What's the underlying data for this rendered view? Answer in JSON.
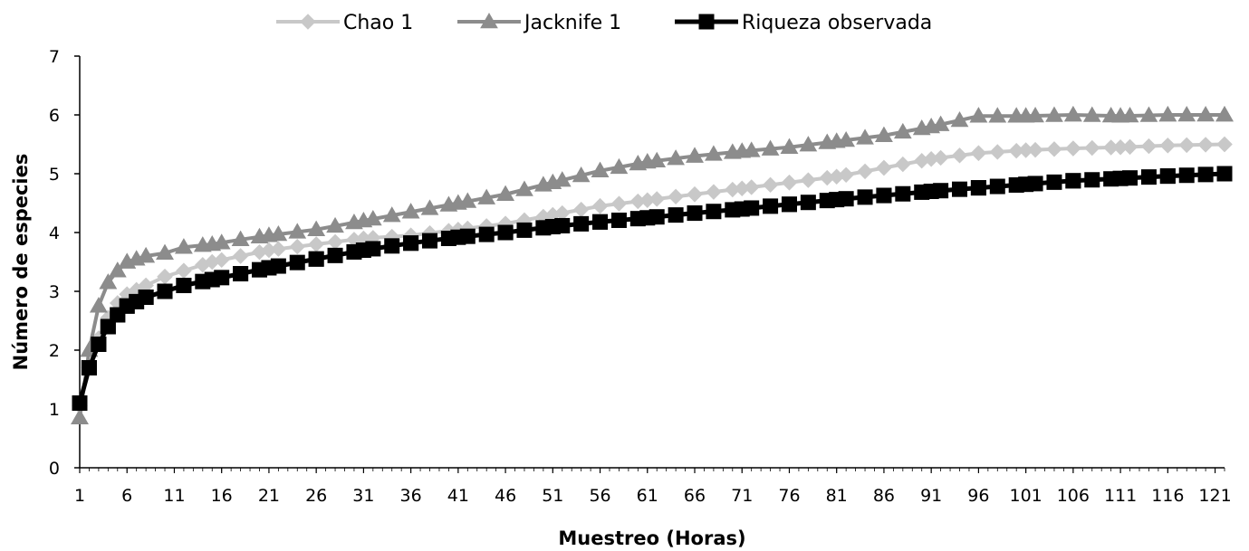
{
  "chart_data": {
    "type": "line",
    "title": "",
    "xlabel": "Muestreo (Horas)",
    "ylabel": "Número de especies",
    "ylim": [
      0,
      7
    ],
    "xlim": [
      1,
      122
    ],
    "yticks": [
      0,
      1,
      2,
      3,
      4,
      5,
      6,
      7
    ],
    "xticks": [
      1,
      6,
      11,
      16,
      21,
      26,
      31,
      36,
      41,
      46,
      51,
      56,
      61,
      66,
      71,
      76,
      81,
      86,
      91,
      96,
      101,
      106,
      111,
      116,
      121
    ],
    "grid": false,
    "legend_position": "top",
    "x": [
      1,
      2,
      3,
      4,
      5,
      6,
      8,
      10,
      12,
      15,
      18,
      21,
      26,
      31,
      36,
      41,
      46,
      51,
      56,
      61,
      66,
      71,
      76,
      81,
      86,
      91,
      96,
      101,
      106,
      111,
      116,
      122
    ],
    "series": [
      {
        "name": "Chao 1",
        "color": "#c8c8c8",
        "marker": "diamond",
        "values": [
          1.05,
          1.7,
          2.2,
          2.55,
          2.8,
          2.95,
          3.1,
          3.25,
          3.35,
          3.5,
          3.6,
          3.7,
          3.8,
          3.9,
          3.95,
          4.05,
          4.15,
          4.3,
          4.45,
          4.55,
          4.65,
          4.75,
          4.85,
          4.95,
          5.1,
          5.25,
          5.35,
          5.4,
          5.43,
          5.45,
          5.48,
          5.5
        ]
      },
      {
        "name": "Jacknife 1",
        "color": "#8c8c8c",
        "marker": "triangle",
        "values": [
          0.85,
          2.0,
          2.75,
          3.15,
          3.35,
          3.5,
          3.6,
          3.65,
          3.75,
          3.8,
          3.88,
          3.95,
          4.05,
          4.2,
          4.35,
          4.5,
          4.65,
          4.85,
          5.05,
          5.2,
          5.3,
          5.38,
          5.45,
          5.55,
          5.65,
          5.8,
          5.98,
          5.98,
          6.0,
          5.98,
          6.0,
          6.0
        ]
      },
      {
        "name": "Riqueza observada",
        "color": "#000000",
        "marker": "square",
        "values": [
          1.1,
          1.7,
          2.1,
          2.4,
          2.6,
          2.75,
          2.9,
          3.0,
          3.1,
          3.2,
          3.3,
          3.4,
          3.55,
          3.7,
          3.82,
          3.92,
          4.0,
          4.1,
          4.18,
          4.25,
          4.33,
          4.4,
          4.48,
          4.56,
          4.63,
          4.7,
          4.76,
          4.82,
          4.88,
          4.92,
          4.96,
          5.0
        ]
      }
    ]
  }
}
